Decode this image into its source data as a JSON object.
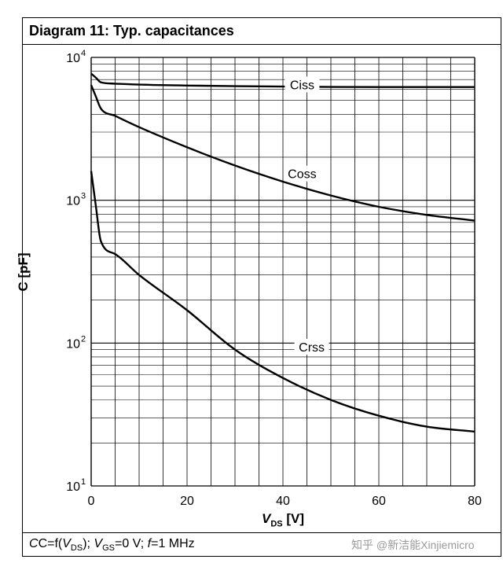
{
  "title": "Diagram 11: Typ. capacitances",
  "footer": {
    "c_eq": "C=f(",
    "vds_v": "V",
    "vds_sub": "DS",
    "mid": "); ",
    "vgs_v": "V",
    "vgs_sub": "GS",
    "vgs_val": "=0 V; ",
    "f_sym": "f",
    "f_val": "=1 MHz"
  },
  "watermark": "知乎 @新洁能Xinjiemicro",
  "chart_data": {
    "type": "line",
    "title": "Diagram 11: Typ. capacitances",
    "xlabel": "V_DS [V]",
    "ylabel": "C [pF]",
    "xlabel_parts": {
      "v": "V",
      "sub": "DS",
      "unit": " [V]"
    },
    "x_scale": "linear",
    "y_scale": "log",
    "xlim": [
      0,
      80
    ],
    "ylim": [
      10,
      10000
    ],
    "x_ticks": [
      0,
      20,
      40,
      60,
      80
    ],
    "x_tick_labels": [
      "0",
      "20",
      "40",
      "60",
      "80"
    ],
    "y_ticks": [
      10,
      100,
      1000,
      10000
    ],
    "y_tick_labels": [
      {
        "base": "10",
        "exp": "1"
      },
      {
        "base": "10",
        "exp": "2"
      },
      {
        "base": "10",
        "exp": "3"
      },
      {
        "base": "10",
        "exp": "4"
      }
    ],
    "grid": true,
    "series": [
      {
        "name": "Ciss",
        "x": [
          0,
          1,
          2,
          5,
          10,
          20,
          40,
          60,
          80
        ],
        "y": [
          7700,
          7200,
          6700,
          6550,
          6450,
          6350,
          6250,
          6200,
          6200
        ],
        "label_at": [
          44,
          6300
        ]
      },
      {
        "name": "Coss",
        "x": [
          0,
          1,
          2,
          5,
          10,
          20,
          30,
          40,
          50,
          60,
          70,
          80
        ],
        "y": [
          6400,
          5300,
          4400,
          3900,
          3250,
          2350,
          1750,
          1350,
          1080,
          900,
          790,
          720
        ],
        "label_at": [
          44,
          1500
        ]
      },
      {
        "name": "Crss",
        "x": [
          0,
          1,
          2,
          5,
          10,
          20,
          30,
          40,
          50,
          60,
          70,
          80
        ],
        "y": [
          1600,
          900,
          520,
          420,
          300,
          170,
          90,
          57,
          40,
          31,
          26,
          24
        ],
        "label_at": [
          46,
          92
        ]
      }
    ]
  }
}
